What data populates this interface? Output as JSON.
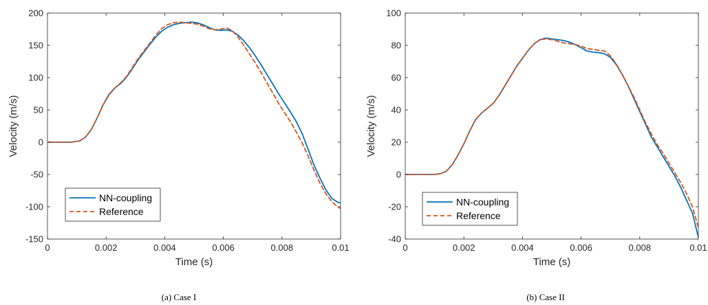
{
  "chart_data": [
    {
      "type": "line",
      "caption": "(a) Case I",
      "xlabel": "Time (s)",
      "ylabel": "Velocity (m/s)",
      "xlim": [
        0,
        0.01
      ],
      "ylim": [
        -150,
        200
      ],
      "xticks": [
        "0",
        "0.002",
        "0.004",
        "0.006",
        "0.008",
        "0.01"
      ],
      "yticks": [
        "-150",
        "-100",
        "-50",
        "0",
        "50",
        "100",
        "150",
        "200"
      ],
      "grid": false,
      "legend_position": "bottom-left",
      "series": [
        {
          "name": "NN-coupling",
          "color": "#0072BD",
          "style": "solid",
          "x": [
            0,
            0.0008,
            0.0011,
            0.0013,
            0.0015,
            0.0017,
            0.0019,
            0.0021,
            0.0023,
            0.0025,
            0.0027,
            0.0029,
            0.0031,
            0.0033,
            0.0035,
            0.0037,
            0.0039,
            0.0041,
            0.0043,
            0.0045,
            0.0047,
            0.0049,
            0.0051,
            0.0053,
            0.0055,
            0.0057,
            0.0059,
            0.0061,
            0.0063,
            0.0065,
            0.0067,
            0.0069,
            0.0071,
            0.0073,
            0.0075,
            0.0077,
            0.0079,
            0.0081,
            0.0083,
            0.0085,
            0.0087,
            0.0089,
            0.0091,
            0.0093,
            0.0095,
            0.0097,
            0.0099,
            0.01
          ],
          "y": [
            0,
            0,
            2,
            8,
            20,
            38,
            58,
            74,
            84,
            91,
            101,
            114,
            128,
            140,
            152,
            163,
            172,
            178,
            182,
            184,
            185,
            186,
            185,
            182,
            178,
            174,
            173,
            174,
            172,
            166,
            157,
            146,
            133,
            119,
            104,
            89,
            74,
            60,
            46,
            31,
            12,
            -12,
            -36,
            -56,
            -74,
            -87,
            -93,
            -94
          ]
        },
        {
          "name": "Reference",
          "color": "#D95319",
          "style": "dashed",
          "x": [
            0,
            0.0008,
            0.0011,
            0.0013,
            0.0015,
            0.0017,
            0.0019,
            0.0021,
            0.0023,
            0.0025,
            0.0027,
            0.0029,
            0.0031,
            0.0033,
            0.0035,
            0.0037,
            0.0039,
            0.0041,
            0.0043,
            0.0045,
            0.0047,
            0.0049,
            0.0051,
            0.0053,
            0.0055,
            0.0057,
            0.0059,
            0.0061,
            0.0063,
            0.0065,
            0.0067,
            0.0069,
            0.0071,
            0.0073,
            0.0075,
            0.0077,
            0.0079,
            0.0081,
            0.0083,
            0.0085,
            0.0087,
            0.0089,
            0.0091,
            0.0093,
            0.0095,
            0.0097,
            0.0099,
            0.01
          ],
          "y": [
            0,
            0,
            2,
            8,
            20,
            38,
            58,
            73,
            84,
            92,
            102,
            116,
            130,
            142,
            154,
            166,
            176,
            182,
            185,
            186,
            185,
            184,
            183,
            180,
            176,
            174,
            175,
            177,
            173,
            163,
            150,
            136,
            122,
            107,
            91,
            75,
            59,
            45,
            31,
            15,
            -2,
            -22,
            -44,
            -64,
            -80,
            -92,
            -100,
            -103
          ]
        }
      ]
    },
    {
      "type": "line",
      "caption": "(b) Case II",
      "xlabel": "Time (s)",
      "ylabel": "Velocity (m/s)",
      "xlim": [
        0,
        0.01
      ],
      "ylim": [
        -40,
        100
      ],
      "xticks": [
        "0",
        "0.002",
        "0.004",
        "0.006",
        "0.008",
        "0.01"
      ],
      "yticks": [
        "-40",
        "-20",
        "0",
        "20",
        "40",
        "60",
        "80",
        "100"
      ],
      "grid": false,
      "legend_position": "bottom-left",
      "series": [
        {
          "name": "NN-coupling",
          "color": "#0072BD",
          "style": "solid",
          "x": [
            0,
            0.001,
            0.0012,
            0.0014,
            0.0016,
            0.0018,
            0.002,
            0.0022,
            0.0024,
            0.0026,
            0.0028,
            0.003,
            0.0032,
            0.0034,
            0.0036,
            0.0038,
            0.004,
            0.0042,
            0.0044,
            0.0046,
            0.0048,
            0.005,
            0.0052,
            0.0054,
            0.0056,
            0.0058,
            0.006,
            0.0062,
            0.0064,
            0.0066,
            0.0068,
            0.007,
            0.0072,
            0.0074,
            0.0076,
            0.0078,
            0.008,
            0.0082,
            0.0084,
            0.0086,
            0.0088,
            0.009,
            0.0092,
            0.0094,
            0.0096,
            0.0098,
            0.01
          ],
          "y": [
            0,
            0,
            0.5,
            2,
            6,
            12,
            19,
            27,
            34,
            38,
            41,
            44,
            49,
            55,
            61,
            67,
            72,
            77,
            81,
            83.5,
            84.5,
            84,
            83.5,
            83,
            82,
            80.5,
            78.5,
            76.5,
            75.8,
            75.5,
            74.8,
            72.5,
            68,
            62,
            55,
            47,
            39,
            31,
            23,
            17,
            11,
            5,
            -1,
            -8,
            -16,
            -24,
            -39
          ]
        },
        {
          "name": "Reference",
          "color": "#D95319",
          "style": "dashed",
          "x": [
            0,
            0.001,
            0.0012,
            0.0014,
            0.0016,
            0.0018,
            0.002,
            0.0022,
            0.0024,
            0.0026,
            0.0028,
            0.003,
            0.0032,
            0.0034,
            0.0036,
            0.0038,
            0.004,
            0.0042,
            0.0044,
            0.0046,
            0.0048,
            0.005,
            0.0052,
            0.0054,
            0.0056,
            0.0058,
            0.006,
            0.0062,
            0.0064,
            0.0066,
            0.0068,
            0.007,
            0.0072,
            0.0074,
            0.0076,
            0.0078,
            0.008,
            0.0082,
            0.0084,
            0.0086,
            0.0088,
            0.009,
            0.0092,
            0.0094,
            0.0096,
            0.0098,
            0.01
          ],
          "y": [
            0,
            0,
            0.5,
            2,
            6,
            12,
            19,
            27,
            34,
            38,
            41,
            44,
            49,
            55,
            61,
            67,
            72,
            77,
            81,
            83.5,
            84,
            83.5,
            82.5,
            81.5,
            81,
            80.5,
            79.5,
            78,
            77.5,
            77,
            76.5,
            73.5,
            68.5,
            62,
            55,
            48,
            40,
            32,
            25,
            18.5,
            13,
            7,
            1,
            -5,
            -12,
            -20,
            -33
          ]
        }
      ]
    }
  ]
}
